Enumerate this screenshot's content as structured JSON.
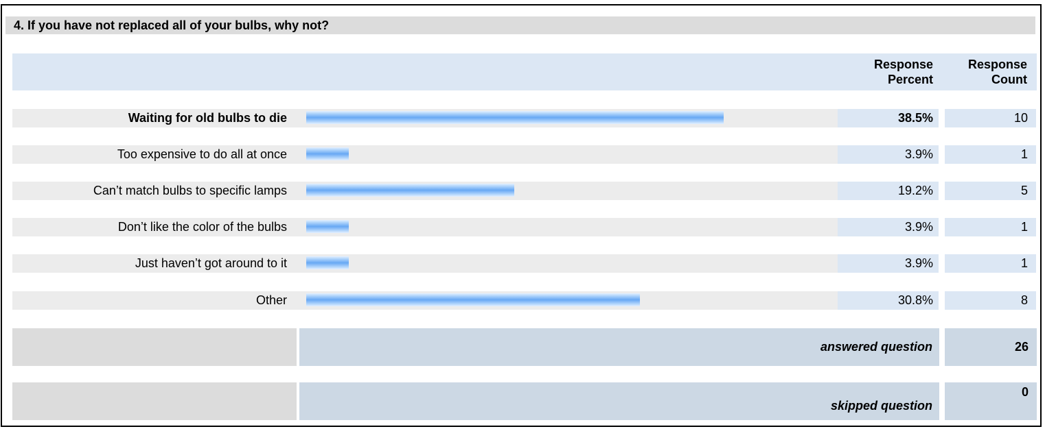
{
  "question": {
    "title": "4. If you have not replaced all of your bulbs, why not?"
  },
  "headers": {
    "percent_line1": "Response",
    "percent_line2": "Percent",
    "count_line1": "Response",
    "count_line2": "Count"
  },
  "rows": [
    {
      "label": "Waiting for old bulbs to die",
      "percent": "38.5%",
      "count": "10",
      "bold": true
    },
    {
      "label": "Too expensive to do all at once",
      "percent": "3.9%",
      "count": "1",
      "bold": false
    },
    {
      "label": "Can’t match bulbs to specific lamps",
      "percent": "19.2%",
      "count": "5",
      "bold": false
    },
    {
      "label": "Don’t like the color of the bulbs",
      "percent": "3.9%",
      "count": "1",
      "bold": false
    },
    {
      "label": "Just haven’t got around to it",
      "percent": "3.9%",
      "count": "1",
      "bold": false
    },
    {
      "label": "Other",
      "percent": "30.8%",
      "count": "8",
      "bold": false
    }
  ],
  "summary": {
    "answered_label": "answered question",
    "answered_value": "26",
    "skipped_label": "skipped question",
    "skipped_value": "0"
  },
  "chart_data": {
    "type": "bar",
    "categories": [
      "Waiting for old bulbs to die",
      "Too expensive to do all at once",
      "Can’t match bulbs to specific lamps",
      "Don’t like the color of the bulbs",
      "Just haven’t got around to it",
      "Other"
    ],
    "values": [
      38.5,
      3.9,
      19.2,
      3.9,
      3.9,
      30.8
    ],
    "counts": [
      10,
      1,
      5,
      1,
      1,
      8
    ],
    "ylim": [
      0,
      100
    ],
    "bar_color": "#68a8f4"
  }
}
